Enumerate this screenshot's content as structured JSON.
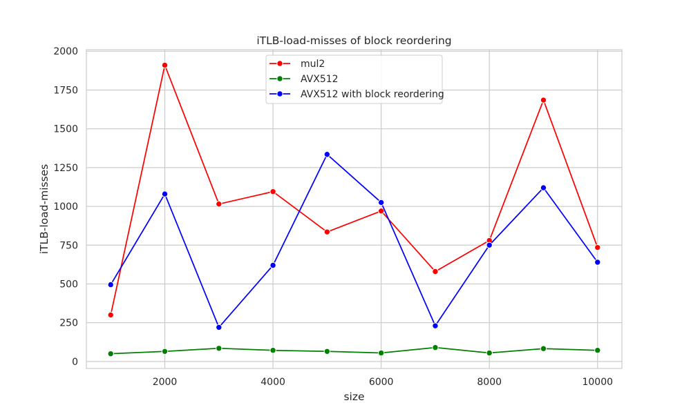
{
  "chart_data": {
    "type": "line",
    "title": "iTLB-load-misses of block reordering",
    "xlabel": "size",
    "ylabel": "iTLB-load-misses",
    "xlim": [
      550,
      10450
    ],
    "ylim": [
      -45,
      2010
    ],
    "xticks": [
      2000,
      4000,
      6000,
      8000,
      10000
    ],
    "yticks": [
      0,
      250,
      500,
      750,
      1000,
      1250,
      1500,
      1750,
      2000
    ],
    "grid": true,
    "legend_position": "upper-center",
    "x": [
      1000,
      2000,
      3000,
      4000,
      5000,
      6000,
      7000,
      8000,
      9000,
      10000
    ],
    "series": [
      {
        "name": "mul2",
        "color": "#ff0000",
        "values": [
          300,
          1910,
          1015,
          1095,
          835,
          970,
          580,
          780,
          1685,
          735
        ]
      },
      {
        "name": "AVX512",
        "color": "#008000",
        "values": [
          50,
          65,
          85,
          72,
          65,
          55,
          90,
          55,
          83,
          72
        ]
      },
      {
        "name": "AVX512 with block reordering",
        "color": "#0000ff",
        "values": [
          495,
          1080,
          220,
          620,
          1335,
          1025,
          230,
          750,
          1120,
          640
        ]
      }
    ]
  }
}
